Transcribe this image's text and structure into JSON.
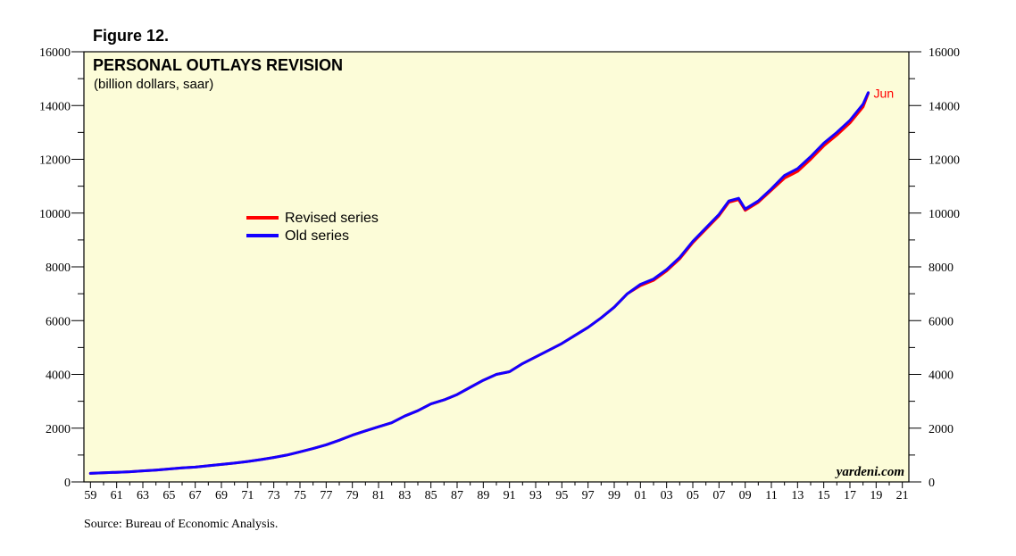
{
  "figure_label": "Figure 12.",
  "source": "Source: Bureau of Economic Analysis.",
  "watermark": "yardeni.com",
  "colors": {
    "revised": "#ff0000",
    "old": "#1400ff",
    "plot_bg": "#fcfcd8"
  },
  "chart_data": {
    "type": "line",
    "title": "PERSONAL OUTLAYS REVISION",
    "subtitle": "(billion dollars, saar)",
    "xlabel": "",
    "ylabel": "",
    "xlim": [
      1958.5,
      2021.5
    ],
    "ylim": [
      0,
      16000
    ],
    "y_ticks": [
      0,
      2000,
      4000,
      6000,
      8000,
      10000,
      12000,
      14000,
      16000
    ],
    "y_tick_labels": [
      "0",
      "2000",
      "4000",
      "6000",
      "8000",
      "10000",
      "12000",
      "14000",
      "16000"
    ],
    "x_ticks": [
      1959,
      1961,
      1963,
      1965,
      1967,
      1969,
      1971,
      1973,
      1975,
      1977,
      1979,
      1981,
      1983,
      1985,
      1987,
      1989,
      1991,
      1993,
      1995,
      1997,
      1999,
      2001,
      2003,
      2005,
      2007,
      2009,
      2011,
      2013,
      2015,
      2017,
      2019,
      2021
    ],
    "x_tick_labels": [
      "59",
      "61",
      "63",
      "65",
      "67",
      "69",
      "71",
      "73",
      "75",
      "77",
      "79",
      "81",
      "83",
      "85",
      "87",
      "89",
      "91",
      "93",
      "95",
      "97",
      "99",
      "01",
      "03",
      "05",
      "07",
      "09",
      "11",
      "13",
      "15",
      "17",
      "19",
      "21"
    ],
    "legend": [
      {
        "label": "Revised series",
        "color": "#ff0000"
      },
      {
        "label": "Old series",
        "color": "#1400ff"
      }
    ],
    "legend_position": "upper-left",
    "annotation": {
      "text": "Jun",
      "x": 2018.4,
      "y": 14450,
      "color": "#ff0000"
    },
    "series": [
      {
        "name": "Revised series",
        "color": "#ff0000",
        "x": [
          1959,
          1960,
          1961,
          1962,
          1963,
          1964,
          1965,
          1966,
          1967,
          1968,
          1969,
          1970,
          1971,
          1972,
          1973,
          1974,
          1975,
          1976,
          1977,
          1978,
          1979,
          1980,
          1981,
          1982,
          1983,
          1984,
          1985,
          1986,
          1987,
          1988,
          1989,
          1990,
          1991,
          1992,
          1993,
          1994,
          1995,
          1996,
          1997,
          1998,
          1999,
          2000,
          2001,
          2002,
          2003,
          2004,
          2005,
          2006,
          2007,
          2007.75,
          2008.5,
          2009,
          2010,
          2011,
          2012,
          2013,
          2014,
          2015,
          2016,
          2017,
          2018,
          2018.4
        ],
        "values": [
          320,
          340,
          360,
          380,
          410,
          440,
          480,
          520,
          550,
          600,
          650,
          700,
          760,
          830,
          910,
          1000,
          1120,
          1240,
          1380,
          1550,
          1740,
          1900,
          2050,
          2200,
          2450,
          2650,
          2900,
          3050,
          3250,
          3520,
          3780,
          4000,
          4100,
          4400,
          4650,
          4900,
          5150,
          5450,
          5750,
          6100,
          6500,
          7000,
          7300,
          7500,
          7850,
          8300,
          8900,
          9400,
          9900,
          10400,
          10500,
          10100,
          10400,
          10850,
          11300,
          11550,
          12000,
          12500,
          12900,
          13350,
          13950,
          14450
        ]
      },
      {
        "name": "Old series",
        "color": "#1400ff",
        "x": [
          1959,
          1960,
          1961,
          1962,
          1963,
          1964,
          1965,
          1966,
          1967,
          1968,
          1969,
          1970,
          1971,
          1972,
          1973,
          1974,
          1975,
          1976,
          1977,
          1978,
          1979,
          1980,
          1981,
          1982,
          1983,
          1984,
          1985,
          1986,
          1987,
          1988,
          1989,
          1990,
          1991,
          1992,
          1993,
          1994,
          1995,
          1996,
          1997,
          1998,
          1999,
          2000,
          2001,
          2002,
          2003,
          2004,
          2005,
          2006,
          2007,
          2007.75,
          2008.5,
          2009,
          2010,
          2011,
          2012,
          2013,
          2014,
          2015,
          2016,
          2017,
          2018,
          2018.4
        ],
        "values": [
          320,
          340,
          360,
          380,
          410,
          440,
          480,
          520,
          550,
          600,
          650,
          700,
          760,
          830,
          910,
          1000,
          1120,
          1240,
          1380,
          1550,
          1740,
          1900,
          2050,
          2200,
          2450,
          2650,
          2900,
          3050,
          3250,
          3520,
          3780,
          4000,
          4100,
          4400,
          4650,
          4900,
          5150,
          5450,
          5750,
          6100,
          6500,
          7000,
          7350,
          7550,
          7900,
          8350,
          8950,
          9450,
          9950,
          10450,
          10550,
          10150,
          10450,
          10900,
          11400,
          11650,
          12100,
          12600,
          13000,
          13450,
          14050,
          14480
        ]
      }
    ]
  }
}
